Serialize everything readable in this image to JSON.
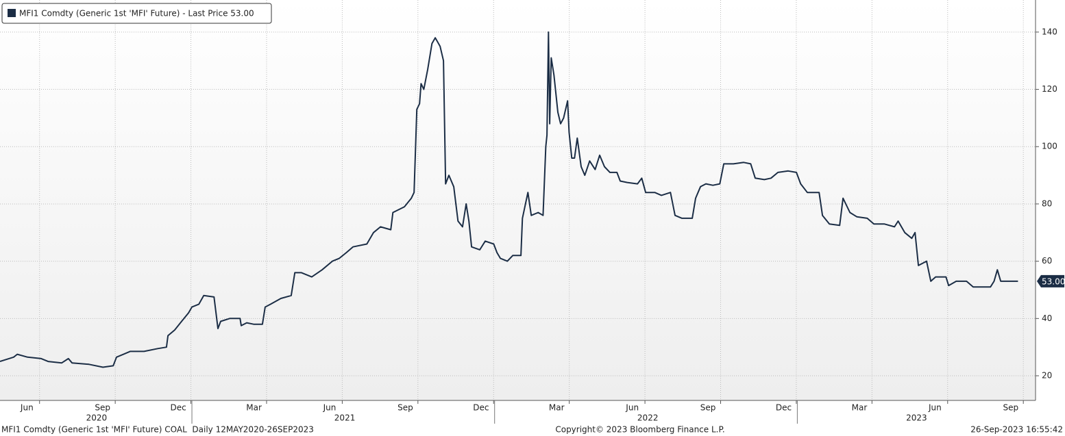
{
  "chart_data": {
    "type": "line",
    "series": [
      {
        "name": "MFI1 Comdty (Generic 1st 'MFI' Future) - Last Price 53.00",
        "color": "#1b2d45",
        "values": [
          25,
          26.5,
          27.5,
          26.5,
          26,
          25,
          24.5,
          26,
          24.5,
          24,
          23,
          23.5,
          26.5,
          27.5,
          28.5,
          28.5,
          29.5,
          30,
          34,
          36,
          39,
          42,
          44,
          45,
          48,
          47.5,
          36.5,
          39,
          40,
          40,
          37.5,
          38.5,
          38,
          38,
          44,
          45,
          47,
          48,
          56,
          56,
          54.5,
          57,
          60,
          61,
          63,
          65,
          66,
          70,
          72,
          71,
          77,
          79,
          82,
          84,
          113,
          115,
          122,
          120,
          127,
          136,
          138,
          135,
          130,
          87,
          90,
          86,
          74,
          72,
          80,
          74,
          65,
          64,
          67,
          66,
          63,
          61,
          60,
          62,
          62,
          75,
          84,
          76,
          77,
          76,
          100,
          104,
          140,
          108,
          131,
          125,
          112,
          108,
          110,
          116,
          105,
          96,
          96,
          103,
          93,
          90,
          95,
          92,
          97,
          93,
          91,
          91,
          88,
          87.5,
          87,
          89,
          84,
          84,
          83,
          84,
          76,
          75,
          75,
          82,
          86,
          87,
          86.5,
          87,
          94,
          94,
          94.5,
          94,
          89,
          88.5,
          89,
          91,
          91.5,
          91,
          87,
          84,
          84,
          76,
          73,
          72.5,
          82,
          77,
          75.5,
          75,
          73,
          73,
          72,
          74,
          70,
          68,
          70,
          58.5,
          60,
          53,
          54.5,
          54.5,
          51.5,
          53,
          53,
          51,
          51,
          53,
          57,
          53,
          53
        ]
      }
    ],
    "x": [
      2020.366,
      2020.411,
      2020.423,
      2020.457,
      2020.502,
      2020.525,
      2020.57,
      2020.592,
      2020.604,
      2020.66,
      2020.706,
      2020.74,
      2020.751,
      2020.774,
      2020.796,
      2020.842,
      2020.887,
      2020.916,
      2020.921,
      2020.943,
      2020.966,
      2020.989,
      2021.0,
      2021.023,
      2021.039,
      2021.073,
      2021.086,
      2021.095,
      2021.125,
      2021.159,
      2021.163,
      2021.181,
      2021.204,
      2021.233,
      2021.242,
      2021.26,
      2021.294,
      2021.328,
      2021.34,
      2021.362,
      2021.396,
      2021.43,
      2021.464,
      2021.487,
      2021.51,
      2021.532,
      2021.578,
      2021.6,
      2021.623,
      2021.657,
      2021.664,
      2021.702,
      2021.725,
      2021.734,
      2021.743,
      2021.752,
      2021.757,
      2021.766,
      2021.779,
      2021.793,
      2021.804,
      2021.82,
      2021.831,
      2021.838,
      2021.849,
      2021.865,
      2021.879,
      2021.894,
      2021.906,
      2021.915,
      2021.924,
      2021.951,
      2021.969,
      2021.997,
      2022.008,
      2022.019,
      2022.042,
      2022.06,
      2022.087,
      2022.092,
      2022.11,
      2022.121,
      2022.144,
      2022.16,
      2022.169,
      2022.173,
      2022.178,
      2022.182,
      2022.187,
      2022.196,
      2022.209,
      2022.218,
      2022.228,
      2022.241,
      2022.246,
      2022.255,
      2022.264,
      2022.273,
      2022.286,
      2022.298,
      2022.314,
      2022.332,
      2022.347,
      2022.363,
      2022.381,
      2022.404,
      2022.415,
      2022.438,
      2022.472,
      2022.486,
      2022.499,
      2022.529,
      2022.551,
      2022.581,
      2022.596,
      2022.619,
      2022.653,
      2022.664,
      2022.68,
      2022.698,
      2022.721,
      2022.744,
      2022.757,
      2022.789,
      2022.823,
      2022.846,
      2022.861,
      2022.891,
      2022.913,
      2022.936,
      2022.97,
      2022.997,
      2023.011,
      2023.033,
      2023.072,
      2023.083,
      2023.106,
      2023.14,
      2023.151,
      2023.174,
      2023.197,
      2023.231,
      2023.253,
      2023.287,
      2023.321,
      2023.333,
      2023.355,
      2023.378,
      2023.389,
      2023.4,
      2023.427,
      2023.441,
      2023.457,
      2023.491,
      2023.5,
      2023.525,
      2023.559,
      2023.581,
      2023.638,
      2023.65,
      2023.661,
      2023.672,
      2023.729
    ],
    "xlim": [
      2020.366,
      2023.787
    ],
    "ylim": [
      11.4,
      151.2
    ],
    "yticks": [
      20,
      40,
      60,
      80,
      100,
      120,
      140
    ],
    "xticks": [
      {
        "value": 2020.455,
        "label": "Jun"
      },
      {
        "value": 2020.705,
        "label": "Sep"
      },
      {
        "value": 2020.955,
        "label": "Dec"
      },
      {
        "value": 2021.205,
        "label": "Mar"
      },
      {
        "value": 2021.455,
        "label": "Jun"
      },
      {
        "value": 2021.705,
        "label": "Sep"
      },
      {
        "value": 2021.955,
        "label": "Dec"
      },
      {
        "value": 2022.205,
        "label": "Mar"
      },
      {
        "value": 2022.455,
        "label": "Jun"
      },
      {
        "value": 2022.705,
        "label": "Sep"
      },
      {
        "value": 2022.955,
        "label": "Dec"
      },
      {
        "value": 2023.205,
        "label": "Mar"
      },
      {
        "value": 2023.455,
        "label": "Jun"
      },
      {
        "value": 2023.705,
        "label": "Sep"
      }
    ],
    "year_labels": [
      {
        "value": 2020.685,
        "label": "2020"
      },
      {
        "value": 2021.505,
        "label": "2021"
      },
      {
        "value": 2022.506,
        "label": "2022"
      },
      {
        "value": 2023.394,
        "label": "2023"
      }
    ],
    "last_value": {
      "value": 53,
      "label": "53.00"
    },
    "grid": true,
    "footer": {
      "left": "MFI1 Comdty (Generic 1st 'MFI' Future) COAL  Daily 12MAY2020-26SEP2023",
      "center": "Copyright© 2023 Bloomberg Finance L.P.",
      "right": "26-Sep-2023 16:55:42"
    }
  }
}
